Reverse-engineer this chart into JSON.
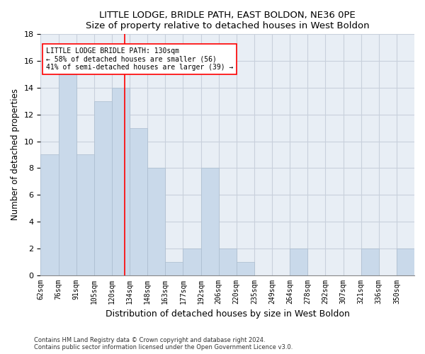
{
  "title": "LITTLE LODGE, BRIDLE PATH, EAST BOLDON, NE36 0PE",
  "subtitle": "Size of property relative to detached houses in West Boldon",
  "xlabel": "Distribution of detached houses by size in West Boldon",
  "ylabel": "Number of detached properties",
  "footnote1": "Contains HM Land Registry data © Crown copyright and database right 2024.",
  "footnote2": "Contains public sector information licensed under the Open Government Licence v3.0.",
  "annotation_line1": "LITTLE LODGE BRIDLE PATH: 130sqm",
  "annotation_line2": "← 58% of detached houses are smaller (56)",
  "annotation_line3": "41% of semi-detached houses are larger (39) →",
  "bar_color": "#c9d9ea",
  "bar_edge_color": "#aabcce",
  "grid_color": "#c8d0dc",
  "axes_bg_color": "#e8eef5",
  "ref_line_color": "red",
  "ref_bar_index": 4,
  "categories": [
    "62sqm",
    "76sqm",
    "91sqm",
    "105sqm",
    "120sqm",
    "134sqm",
    "148sqm",
    "163sqm",
    "177sqm",
    "192sqm",
    "206sqm",
    "220sqm",
    "235sqm",
    "249sqm",
    "264sqm",
    "278sqm",
    "292sqm",
    "307sqm",
    "321sqm",
    "336sqm",
    "350sqm"
  ],
  "values": [
    9,
    15,
    9,
    13,
    14,
    11,
    8,
    1,
    2,
    8,
    2,
    1,
    0,
    0,
    2,
    0,
    0,
    0,
    2,
    0,
    2
  ],
  "ylim": [
    0,
    18
  ],
  "yticks": [
    0,
    2,
    4,
    6,
    8,
    10,
    12,
    14,
    16,
    18
  ],
  "title_fontsize": 9.5,
  "ylabel_fontsize": 8.5,
  "xlabel_fontsize": 9,
  "tick_fontsize": 7,
  "annot_fontsize": 7,
  "footnote_fontsize": 6
}
